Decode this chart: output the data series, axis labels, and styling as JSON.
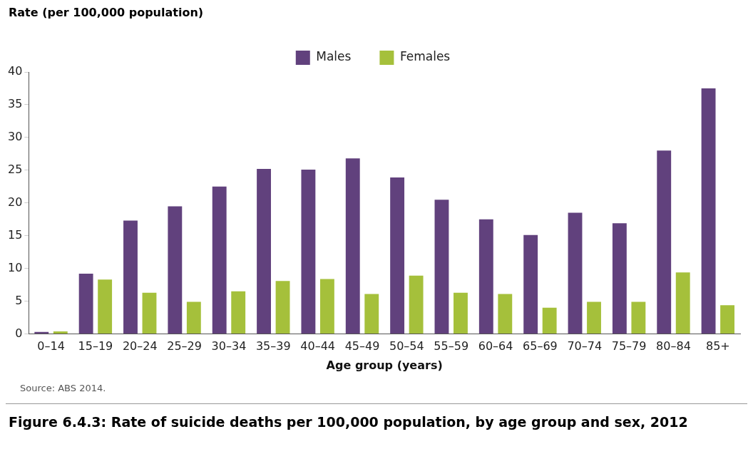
{
  "chart_data": {
    "type": "bar",
    "title": "Figure 6.4.3: Rate of suicide deaths per 100,000 population, by age group and sex, 2012",
    "ylabel": "Rate (per 100,000 population)",
    "xlabel": "Age group (years)",
    "annotations": [
      "Source: ABS 2014."
    ],
    "categories": [
      "0–14",
      "15–19",
      "20–24",
      "25–29",
      "30–34",
      "35–39",
      "40–44",
      "45–49",
      "50–54",
      "55–59",
      "60–64",
      "65–69",
      "70–74",
      "75–79",
      "80–84",
      "85+"
    ],
    "series": [
      {
        "name": "Males",
        "color": "#61417d",
        "values": [
          0.3,
          9.2,
          17.3,
          19.5,
          22.5,
          25.2,
          25.1,
          26.8,
          23.9,
          20.5,
          17.5,
          15.1,
          18.5,
          16.9,
          28.0,
          37.5
        ]
      },
      {
        "name": "Females",
        "color": "#a5c03b",
        "values": [
          0.4,
          8.3,
          6.3,
          4.9,
          6.5,
          8.1,
          8.4,
          6.1,
          8.9,
          6.3,
          6.1,
          4.0,
          4.9,
          4.9,
          9.4,
          4.4
        ]
      }
    ],
    "ylim": [
      0,
      40
    ],
    "yticks": [
      0,
      5,
      10,
      15,
      20,
      25,
      30,
      35,
      40
    ],
    "grid": false,
    "legend": "top"
  }
}
